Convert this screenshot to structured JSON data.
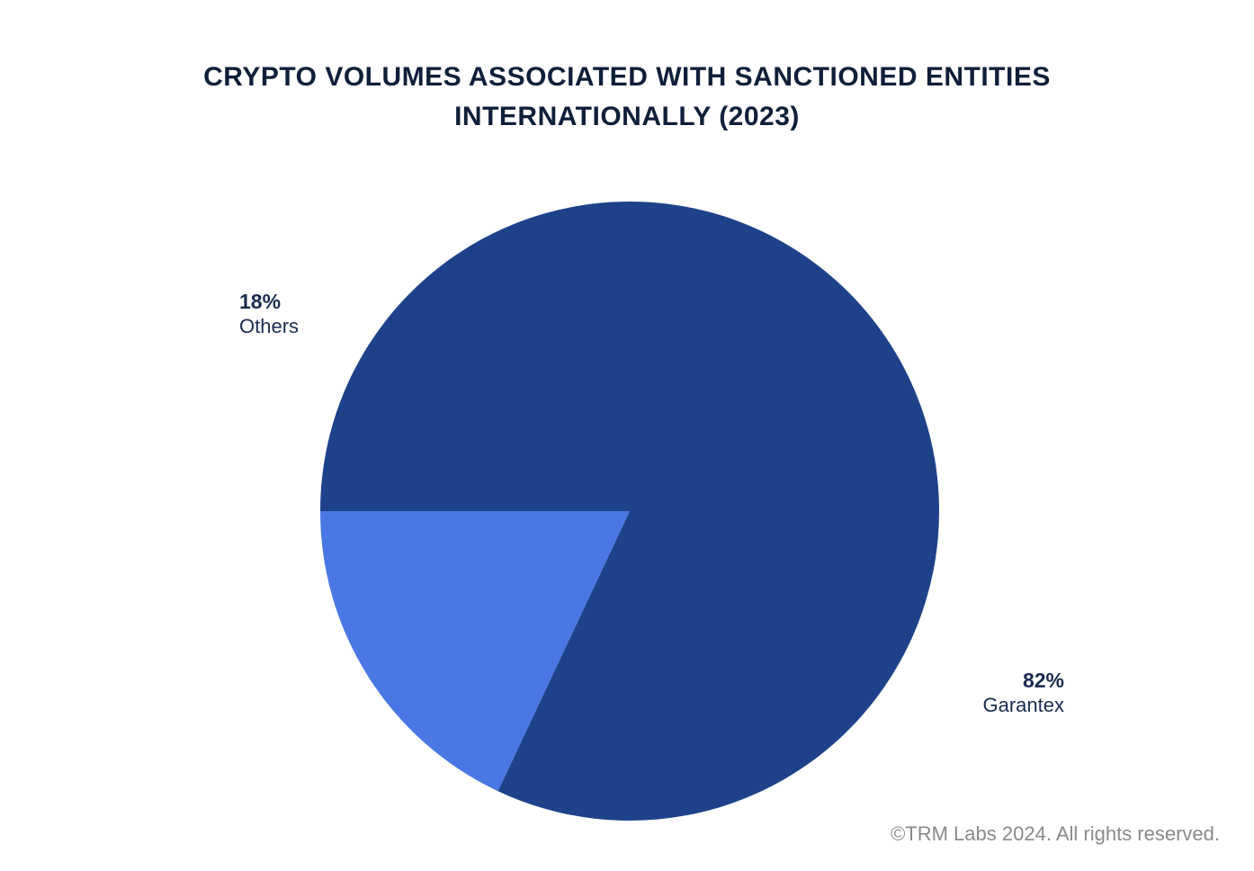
{
  "chart_data": {
    "type": "pie",
    "title": "CRYPTO VOLUMES ASSOCIATED WITH SANCTIONED ENTITIES INTERNATIONALLY (2023)",
    "title_lines": [
      "CRYPTO VOLUMES ASSOCIATED WITH SANCTIONED ENTITIES",
      "INTERNATIONALLY (2023)"
    ],
    "slices": [
      {
        "name": "Garantex",
        "value": 82,
        "label": "82%",
        "color": "#1e428a"
      },
      {
        "name": "Others",
        "value": 18,
        "label": "18%",
        "color": "#4a77e3"
      }
    ],
    "legend": "none"
  },
  "footer": {
    "copyright": "©TRM Labs 2024. All rights reserved."
  }
}
